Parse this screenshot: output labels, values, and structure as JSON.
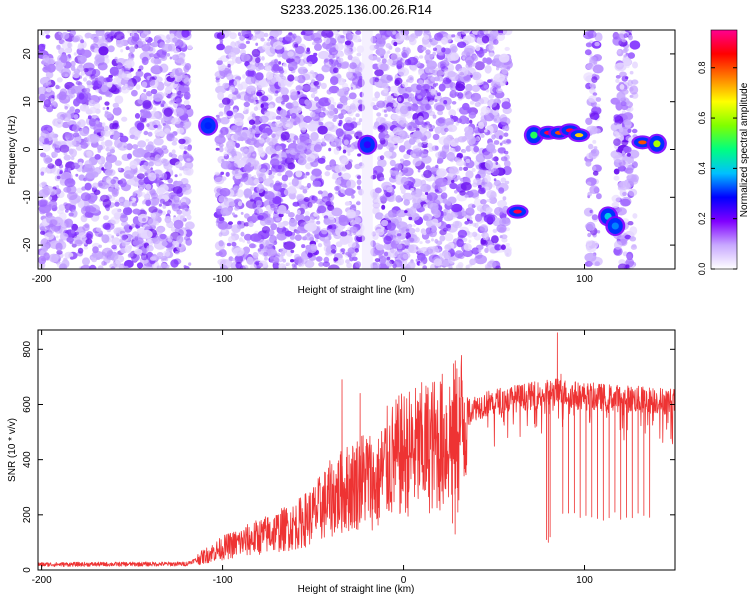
{
  "title": "S233.2025.136.00.26.R14",
  "chart_data": [
    {
      "type": "heatmap",
      "xlabel": "Height of straight line (km)",
      "ylabel": "Frequency (Hz)",
      "xlim": [
        -202,
        150
      ],
      "ylim": [
        -25,
        25
      ],
      "x_ticks": [
        -200,
        -100,
        0,
        100
      ],
      "y_ticks": [
        -20,
        -10,
        0,
        10,
        20
      ],
      "colorbar": {
        "label": "Normalized spectral amplitude",
        "range": [
          0,
          0.95
        ],
        "ticks": [
          0,
          0.2,
          0.4,
          0.6,
          0.8
        ],
        "colors": [
          "#ffffff",
          "#c8a8ff",
          "#8000ff",
          "#0000ff",
          "#00c0ff",
          "#00ff80",
          "#80ff00",
          "#ffff00",
          "#ff8000",
          "#ff0000",
          "#ff0090"
        ]
      },
      "noise_band_x": [
        [
          -200,
          -118
        ],
        [
          -103,
          -23
        ],
        [
          -17,
          58
        ],
        [
          102,
          108
        ],
        [
          117,
          128
        ]
      ],
      "gap_x": [
        [
          -118,
          -103
        ],
        [
          -23,
          -17
        ],
        [
          58,
          102
        ]
      ],
      "features": [
        {
          "x": -108,
          "y": 5,
          "amplitude": 0.3
        },
        {
          "x": -20,
          "y": 1,
          "amplitude": 0.25
        },
        {
          "x": 63,
          "y": -13,
          "amplitude": 0.9
        },
        {
          "x": 72,
          "y": 3,
          "amplitude": 0.5
        },
        {
          "x": 80,
          "y": 3.5,
          "amplitude": 0.9
        },
        {
          "x": 86,
          "y": 3.5,
          "amplitude": 0.8
        },
        {
          "x": 92,
          "y": 4,
          "amplitude": 0.9
        },
        {
          "x": 97,
          "y": 3,
          "amplitude": 0.7
        },
        {
          "x": 113,
          "y": -14,
          "amplitude": 0.4
        },
        {
          "x": 117,
          "y": -16,
          "amplitude": 0.35
        },
        {
          "x": 132,
          "y": 1.5,
          "amplitude": 0.8
        },
        {
          "x": 140,
          "y": 1.2,
          "amplitude": 0.6
        }
      ]
    },
    {
      "type": "line",
      "xlabel": "Height of straight line (km)",
      "ylabel": "SNR (10 * v/v)",
      "xlim": [
        -202,
        150
      ],
      "ylim": [
        0,
        870
      ],
      "x_ticks": [
        -200,
        -100,
        0,
        100
      ],
      "y_ticks": [
        0,
        200,
        400,
        600,
        800
      ],
      "line_color": "#ee3333",
      "profile": [
        {
          "x": -202,
          "y": 20
        },
        {
          "x": -120,
          "y": 22
        },
        {
          "x": -110,
          "y": 50
        },
        {
          "x": -100,
          "y": 80
        },
        {
          "x": -90,
          "y": 100
        },
        {
          "x": -80,
          "y": 120
        },
        {
          "x": -70,
          "y": 140
        },
        {
          "x": -60,
          "y": 160
        },
        {
          "x": -50,
          "y": 200
        },
        {
          "x": -40,
          "y": 260
        },
        {
          "x": -30,
          "y": 300
        },
        {
          "x": -20,
          "y": 340
        },
        {
          "x": -15,
          "y": 300
        },
        {
          "x": -10,
          "y": 380
        },
        {
          "x": 0,
          "y": 420
        },
        {
          "x": 10,
          "y": 440
        },
        {
          "x": 20,
          "y": 460
        },
        {
          "x": 30,
          "y": 500
        },
        {
          "x": 35,
          "y": 580
        },
        {
          "x": 50,
          "y": 610
        },
        {
          "x": 70,
          "y": 630
        },
        {
          "x": 85,
          "y": 645
        },
        {
          "x": 100,
          "y": 630
        },
        {
          "x": 150,
          "y": 610
        }
      ],
      "dropouts": [
        {
          "x": 27,
          "y": 170
        },
        {
          "x": 28.5,
          "y": 130
        },
        {
          "x": 30,
          "y": 210
        },
        {
          "x": 79,
          "y": 110
        },
        {
          "x": 80,
          "y": 100
        },
        {
          "x": 81,
          "y": 120
        }
      ],
      "periodic_dips": {
        "x_range": [
          88,
          137
        ],
        "step": 3.2,
        "low": 180
      },
      "spikes": [
        {
          "x": -34,
          "y": 690
        },
        {
          "x": -24,
          "y": 640
        },
        {
          "x": 85,
          "y": 860
        },
        {
          "x": 87,
          "y": 710
        }
      ]
    }
  ]
}
